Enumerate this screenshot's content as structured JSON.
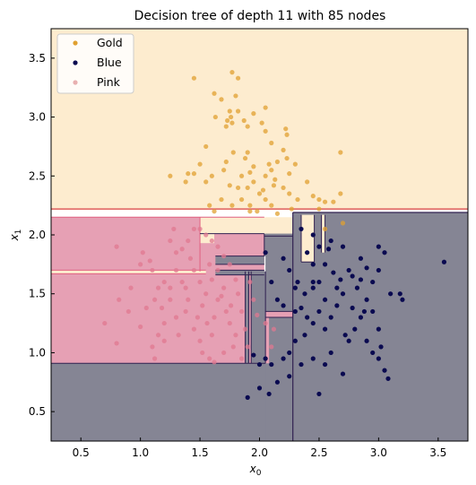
{
  "chart_data": {
    "type": "scatter",
    "title": "Decision tree of depth 11 with 85 nodes",
    "xlabel_main": "x",
    "xlabel_sub": "0",
    "ylabel_main": "x",
    "ylabel_sub": "1",
    "xlim": [
      0.25,
      3.75
    ],
    "ylim": [
      0.25,
      3.75
    ],
    "xticks": [
      "0.5",
      "1.0",
      "1.5",
      "2.0",
      "2.5",
      "3.0",
      "3.5"
    ],
    "yticks": [
      "0.5",
      "1.0",
      "1.5",
      "2.0",
      "2.5",
      "3.0",
      "3.5"
    ],
    "legend_position": "top-left",
    "colors": {
      "gold": "#e0a030",
      "blue": "#0a0a50",
      "pink": "#e07890",
      "region_gold": "#fdeccf",
      "region_blue": "#858594",
      "region_pink": "#e6a0b4"
    },
    "series": [
      {
        "name": "Gold",
        "key": "gold",
        "points": [
          [
            1.45,
            3.33
          ],
          [
            1.77,
            3.38
          ],
          [
            1.82,
            3.33
          ],
          [
            1.8,
            3.18
          ],
          [
            1.75,
            3.05
          ],
          [
            1.76,
            3.0
          ],
          [
            1.77,
            2.95
          ],
          [
            1.63,
            3.0
          ],
          [
            1.73,
            2.97
          ],
          [
            1.72,
            2.92
          ],
          [
            1.87,
            2.97
          ],
          [
            1.9,
            2.92
          ],
          [
            1.95,
            3.03
          ],
          [
            2.05,
            3.08
          ],
          [
            1.62,
            3.2
          ],
          [
            1.68,
            3.15
          ],
          [
            1.82,
            3.05
          ],
          [
            2.02,
            2.95
          ],
          [
            2.05,
            2.88
          ],
          [
            2.1,
            2.78
          ],
          [
            2.2,
            2.72
          ],
          [
            2.22,
            2.9
          ],
          [
            2.23,
            2.85
          ],
          [
            2.3,
            2.6
          ],
          [
            2.23,
            2.65
          ],
          [
            2.15,
            2.62
          ],
          [
            2.13,
            2.47
          ],
          [
            2.08,
            2.6
          ],
          [
            2.05,
            2.5
          ],
          [
            1.95,
            2.58
          ],
          [
            1.88,
            2.65
          ],
          [
            1.78,
            2.7
          ],
          [
            1.72,
            2.62
          ],
          [
            1.85,
            2.5
          ],
          [
            1.82,
            2.4
          ],
          [
            1.9,
            2.4
          ],
          [
            1.95,
            2.45
          ],
          [
            2.0,
            2.35
          ],
          [
            2.05,
            2.3
          ],
          [
            2.1,
            2.25
          ],
          [
            1.98,
            2.2
          ],
          [
            1.92,
            2.25
          ],
          [
            1.85,
            2.3
          ],
          [
            1.75,
            2.42
          ],
          [
            1.68,
            2.3
          ],
          [
            1.62,
            2.2
          ],
          [
            1.58,
            2.25
          ],
          [
            1.55,
            2.45
          ],
          [
            1.5,
            2.6
          ],
          [
            1.6,
            2.5
          ],
          [
            1.55,
            2.75
          ],
          [
            1.4,
            2.52
          ],
          [
            1.45,
            2.52
          ],
          [
            1.25,
            2.5
          ],
          [
            1.38,
            2.45
          ],
          [
            2.15,
            2.18
          ],
          [
            2.2,
            2.4
          ],
          [
            2.25,
            2.35
          ],
          [
            2.32,
            2.3
          ],
          [
            2.27,
            2.22
          ],
          [
            2.4,
            2.45
          ],
          [
            2.45,
            2.33
          ],
          [
            2.5,
            2.3
          ],
          [
            2.5,
            2.22
          ],
          [
            2.55,
            2.28
          ],
          [
            2.62,
            2.28
          ],
          [
            2.68,
            2.35
          ],
          [
            2.68,
            2.7
          ],
          [
            2.7,
            2.1
          ],
          [
            2.55,
            2.05
          ],
          [
            2.25,
            2.52
          ],
          [
            2.12,
            2.42
          ],
          [
            2.03,
            2.38
          ],
          [
            1.92,
            2.53
          ],
          [
            1.9,
            2.7
          ],
          [
            1.7,
            2.55
          ],
          [
            1.77,
            2.25
          ],
          [
            1.92,
            2.2
          ],
          [
            2.1,
            2.55
          ]
        ]
      },
      {
        "name": "Blue",
        "key": "blue",
        "points": [
          [
            2.35,
            2.05
          ],
          [
            2.45,
            2.0
          ],
          [
            2.4,
            1.85
          ],
          [
            2.5,
            1.9
          ],
          [
            2.45,
            1.75
          ],
          [
            2.55,
            1.75
          ],
          [
            2.6,
            1.95
          ],
          [
            2.58,
            1.88
          ],
          [
            2.62,
            1.68
          ],
          [
            2.5,
            1.6
          ],
          [
            2.45,
            1.55
          ],
          [
            2.38,
            1.5
          ],
          [
            2.3,
            1.55
          ],
          [
            2.32,
            1.6
          ],
          [
            2.25,
            1.7
          ],
          [
            2.2,
            1.8
          ],
          [
            2.05,
            1.85
          ],
          [
            2.1,
            1.6
          ],
          [
            2.15,
            1.45
          ],
          [
            2.2,
            1.4
          ],
          [
            2.3,
            1.35
          ],
          [
            2.35,
            1.38
          ],
          [
            2.4,
            1.3
          ],
          [
            2.45,
            1.25
          ],
          [
            2.38,
            1.15
          ],
          [
            2.3,
            1.1
          ],
          [
            2.25,
            1.0
          ],
          [
            2.2,
            0.95
          ],
          [
            2.1,
            0.9
          ],
          [
            2.05,
            0.95
          ],
          [
            2.0,
            0.9
          ],
          [
            1.95,
            0.98
          ],
          [
            1.9,
            0.62
          ],
          [
            2.0,
            0.7
          ],
          [
            2.08,
            0.65
          ],
          [
            2.15,
            0.75
          ],
          [
            2.25,
            0.8
          ],
          [
            2.35,
            0.9
          ],
          [
            2.45,
            0.95
          ],
          [
            2.5,
            0.65
          ],
          [
            2.55,
            0.9
          ],
          [
            2.6,
            1.0
          ],
          [
            2.7,
            0.82
          ],
          [
            2.75,
            1.1
          ],
          [
            2.8,
            1.2
          ],
          [
            2.85,
            1.3
          ],
          [
            2.9,
            1.1
          ],
          [
            2.95,
            1.0
          ],
          [
            3.0,
            0.95
          ],
          [
            3.05,
            0.85
          ],
          [
            3.08,
            0.78
          ],
          [
            3.0,
            1.2
          ],
          [
            2.95,
            1.35
          ],
          [
            2.9,
            1.45
          ],
          [
            2.82,
            1.55
          ],
          [
            2.78,
            1.65
          ],
          [
            2.85,
            1.8
          ],
          [
            2.75,
            1.7
          ],
          [
            2.7,
            1.5
          ],
          [
            2.65,
            1.4
          ],
          [
            2.6,
            1.3
          ],
          [
            2.55,
            1.45
          ],
          [
            2.5,
            1.35
          ],
          [
            2.45,
            1.6
          ],
          [
            3.0,
            1.9
          ],
          [
            3.05,
            1.85
          ],
          [
            3.0,
            1.7
          ],
          [
            2.95,
            1.6
          ],
          [
            2.9,
            1.72
          ],
          [
            3.1,
            1.5
          ],
          [
            3.18,
            1.5
          ],
          [
            3.2,
            1.45
          ],
          [
            2.65,
            1.55
          ],
          [
            2.55,
            1.2
          ],
          [
            2.7,
            1.9
          ],
          [
            3.55,
            1.77
          ],
          [
            2.85,
            1.62
          ],
          [
            2.88,
            1.35
          ],
          [
            2.72,
            1.15
          ],
          [
            3.02,
            1.05
          ],
          [
            2.78,
            1.38
          ],
          [
            2.68,
            1.62
          ]
        ]
      },
      {
        "name": "Pink",
        "key": "pink",
        "points": [
          [
            0.8,
            1.9
          ],
          [
            0.82,
            1.45
          ],
          [
            0.8,
            1.08
          ],
          [
            0.9,
            1.35
          ],
          [
            0.92,
            1.55
          ],
          [
            1.0,
            1.75
          ],
          [
            1.02,
            1.85
          ],
          [
            1.08,
            1.78
          ],
          [
            1.1,
            1.7
          ],
          [
            1.15,
            1.55
          ],
          [
            1.12,
            1.45
          ],
          [
            1.18,
            1.38
          ],
          [
            1.2,
            1.25
          ],
          [
            1.15,
            1.15
          ],
          [
            1.1,
            1.05
          ],
          [
            1.12,
            0.95
          ],
          [
            1.2,
            1.1
          ],
          [
            1.25,
            1.55
          ],
          [
            1.3,
            1.7
          ],
          [
            1.35,
            1.6
          ],
          [
            1.38,
            1.55
          ],
          [
            1.4,
            1.45
          ],
          [
            1.38,
            1.35
          ],
          [
            1.3,
            1.3
          ],
          [
            1.25,
            1.45
          ],
          [
            1.2,
            1.6
          ],
          [
            1.45,
            1.7
          ],
          [
            1.5,
            1.6
          ],
          [
            1.55,
            1.5
          ],
          [
            1.52,
            1.4
          ],
          [
            1.48,
            1.3
          ],
          [
            1.45,
            1.2
          ],
          [
            1.5,
            1.1
          ],
          [
            1.52,
            1.0
          ],
          [
            1.58,
            0.95
          ],
          [
            1.6,
            1.15
          ],
          [
            1.62,
            1.3
          ],
          [
            1.65,
            1.45
          ],
          [
            1.7,
            1.55
          ],
          [
            1.72,
            1.35
          ],
          [
            1.75,
            1.25
          ],
          [
            1.8,
            1.15
          ],
          [
            1.78,
            1.05
          ],
          [
            1.7,
            1.0
          ],
          [
            1.62,
            0.92
          ],
          [
            1.85,
            0.95
          ],
          [
            1.9,
            1.05
          ],
          [
            1.88,
            1.2
          ],
          [
            1.85,
            1.35
          ],
          [
            1.82,
            1.5
          ],
          [
            1.8,
            1.62
          ],
          [
            1.75,
            1.75
          ],
          [
            1.7,
            1.82
          ],
          [
            1.65,
            1.9
          ],
          [
            1.6,
            1.95
          ],
          [
            1.55,
            2.0
          ],
          [
            1.5,
            2.05
          ],
          [
            1.45,
            2.05
          ],
          [
            1.4,
            1.95
          ],
          [
            1.35,
            1.88
          ],
          [
            1.3,
            1.85
          ],
          [
            1.25,
            1.95
          ],
          [
            1.28,
            2.05
          ],
          [
            1.6,
            1.62
          ],
          [
            1.65,
            1.7
          ],
          [
            1.92,
            1.6
          ],
          [
            1.95,
            1.45
          ],
          [
            2.05,
            1.25
          ],
          [
            2.1,
            1.05
          ],
          [
            2.12,
            1.2
          ],
          [
            0.7,
            1.25
          ],
          [
            1.0,
            1.22
          ],
          [
            1.05,
            1.38
          ],
          [
            1.42,
            1.8
          ],
          [
            1.58,
            1.75
          ],
          [
            1.68,
            1.48
          ],
          [
            1.98,
            1.32
          ],
          [
            1.76,
            1.4
          ],
          [
            1.56,
            1.25
          ],
          [
            1.32,
            1.15
          ]
        ]
      }
    ]
  }
}
